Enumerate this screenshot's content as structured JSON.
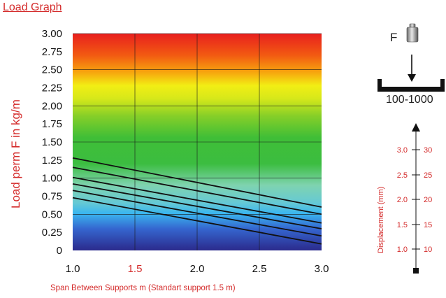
{
  "header": {
    "title": "Load Graph"
  },
  "chart_data": {
    "type": "line",
    "title": "",
    "xlabel": "Span Between Supports m (Standart support 1.5 m)",
    "ylabel": "Load perm F in kg/m",
    "xlim": [
      1.0,
      3.0
    ],
    "ylim": [
      0,
      3.0
    ],
    "x_ticks": [
      "1.0",
      "1.5",
      "2.0",
      "2.5",
      "3.0"
    ],
    "x_tick_highlight": "1.5",
    "y_ticks": [
      "0",
      "0.25",
      "0.50",
      "0.75",
      "1.00",
      "1.25",
      "1.50",
      "1.75",
      "2.00",
      "2.25",
      "2.50",
      "2.75",
      "3.00"
    ],
    "grid": true,
    "background": "gradient from red (top) through yellow and green to blue (bottom)",
    "series": [
      {
        "x": [
          1.0,
          3.0
        ],
        "y": [
          1.28,
          0.6
        ]
      },
      {
        "x": [
          1.0,
          3.0
        ],
        "y": [
          1.15,
          0.5
        ]
      },
      {
        "x": [
          1.0,
          3.0
        ],
        "y": [
          1.01,
          0.38
        ]
      },
      {
        "x": [
          1.0,
          3.0
        ],
        "y": [
          0.92,
          0.3
        ]
      },
      {
        "x": [
          1.0,
          3.0
        ],
        "y": [
          0.83,
          0.2
        ]
      },
      {
        "x": [
          1.0,
          3.0
        ],
        "y": [
          0.73,
          0.09
        ]
      }
    ]
  },
  "side_panel": {
    "force_label": "F",
    "range_label": "100-1000",
    "displacement_label": "Displacement (mm)",
    "left_ticks": [
      "3.0",
      "2.5",
      "2.0",
      "1.5",
      "1.0"
    ],
    "right_ticks": [
      "30",
      "25",
      "20",
      "15",
      "10"
    ]
  },
  "colors": {
    "accent": "#d42b2b",
    "line": "#111111",
    "grid": "#1a1a1a"
  }
}
